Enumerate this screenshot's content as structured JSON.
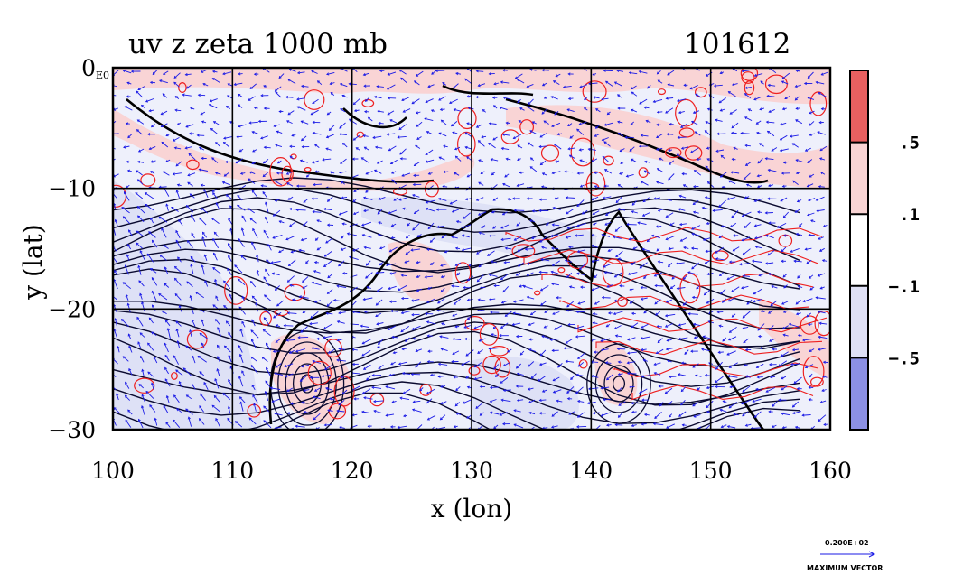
{
  "chart_data": {
    "type": "heatmap",
    "title": "uv z zeta 1000 mb",
    "run_id": "101612",
    "xlabel": "x (lon)",
    "ylabel": "y (lat)",
    "xlim": [
      100,
      160
    ],
    "ylim": [
      -30,
      0
    ],
    "x_ticks": [
      "100",
      "110",
      "120",
      "130",
      "140",
      "150",
      "160"
    ],
    "y_ticks": [
      "0",
      "−10",
      "−20",
      "−30"
    ],
    "x_tick_values": [
      100,
      110,
      120,
      130,
      140,
      150,
      160
    ],
    "y_tick_values": [
      0,
      -10,
      -20,
      -30
    ],
    "y_top_suffix": "E0",
    "grid": true,
    "colorbar": {
      "position": "right",
      "levels": [
        {
          "label": ".5",
          "value": 0.5
        },
        {
          "label": ".1",
          "value": 0.1
        },
        {
          "label": "−.1",
          "value": -0.1
        },
        {
          "label": "−.5",
          "value": -0.5
        }
      ],
      "colors": [
        "#e86060",
        "#f9d4d4",
        "#ffffff",
        "#dfe0f5",
        "#8c90e4"
      ]
    },
    "vector_legend": {
      "value_label": "0.200E+02",
      "caption": "MAXIMUM VECTOR"
    },
    "colors": {
      "positive": "#ee2020",
      "negative_fill": "#dcdff5",
      "positive_fill": "#f9d0d0",
      "vectors": "#1a1ae6",
      "contours": "#0a0a30"
    }
  }
}
